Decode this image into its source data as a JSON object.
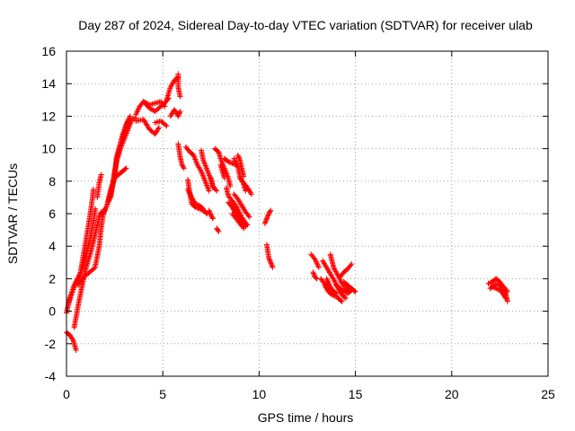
{
  "chart_data": {
    "type": "scatter",
    "title": "Day 287 of 2024, Sidereal Day-to-day VTEC variation (SDTVAR) for receiver ulab",
    "xlabel": "GPS time / hours",
    "ylabel": "SDTVAR / TECUs",
    "xlim": [
      0,
      25
    ],
    "ylim": [
      -4,
      16
    ],
    "xticks": [
      "0",
      "5",
      "10",
      "15",
      "20",
      "25"
    ],
    "yticks": [
      "-4",
      "-2",
      "0",
      "2",
      "4",
      "6",
      "8",
      "10",
      "12",
      "14",
      "16"
    ],
    "grid": true,
    "marker": "+",
    "colors": {
      "series": "#ff0000",
      "axes": "#000000",
      "grid": "#a0a0a0"
    },
    "series": [
      {
        "name": "SDTVAR",
        "segments": [
          [
            [
              0.0,
              -0.1
            ],
            [
              0.2,
              0.9
            ],
            [
              0.4,
              1.6
            ],
            [
              0.7,
              2.3
            ],
            [
              1.0,
              3.3
            ],
            [
              1.2,
              4.3
            ],
            [
              1.4,
              5.5
            ],
            [
              1.5,
              6.3
            ]
          ],
          [
            [
              0.1,
              0.5
            ],
            [
              0.4,
              1.5
            ],
            [
              0.7,
              2.2
            ],
            [
              0.9,
              3.6
            ],
            [
              1.1,
              5.0
            ],
            [
              1.3,
              6.5
            ],
            [
              1.4,
              7.5
            ]
          ],
          [
            [
              0.0,
              -1.3
            ],
            [
              0.2,
              -1.5
            ],
            [
              0.35,
              -1.8
            ],
            [
              0.5,
              -2.4
            ]
          ],
          [
            [
              0.4,
              -1.0
            ],
            [
              0.6,
              0.3
            ],
            [
              0.8,
              1.5
            ],
            [
              1.0,
              2.6
            ],
            [
              1.3,
              3.8
            ],
            [
              1.5,
              4.8
            ],
            [
              1.7,
              5.8
            ],
            [
              1.8,
              6.1
            ]
          ],
          [
            [
              0.6,
              1.6
            ],
            [
              0.9,
              2.1
            ],
            [
              1.2,
              2.4
            ],
            [
              1.5,
              2.7
            ]
          ],
          [
            [
              1.5,
              2.8
            ],
            [
              1.7,
              4.0
            ],
            [
              1.8,
              5.1
            ],
            [
              1.9,
              5.9
            ],
            [
              2.0,
              6.3
            ]
          ],
          [
            [
              1.6,
              7.0
            ],
            [
              1.7,
              7.9
            ],
            [
              1.8,
              8.4
            ]
          ],
          [
            [
              1.9,
              6.0
            ],
            [
              2.1,
              6.5
            ],
            [
              2.3,
              7.2
            ],
            [
              2.5,
              8.3
            ],
            [
              2.6,
              9.5
            ],
            [
              2.8,
              10.3
            ],
            [
              3.0,
              11.0
            ],
            [
              3.2,
              11.7
            ]
          ],
          [
            [
              2.1,
              6.5
            ],
            [
              2.3,
              7.5
            ],
            [
              2.5,
              8.2
            ],
            [
              2.7,
              8.4
            ],
            [
              2.9,
              8.6
            ],
            [
              3.1,
              8.8
            ]
          ],
          [
            [
              2.2,
              6.8
            ],
            [
              2.4,
              7.8
            ],
            [
              2.6,
              9.2
            ],
            [
              2.8,
              10.0
            ],
            [
              3.0,
              10.6
            ],
            [
              3.2,
              11.2
            ],
            [
              3.4,
              11.8
            ],
            [
              3.6,
              11.9
            ]
          ],
          [
            [
              2.3,
              7.0
            ],
            [
              2.5,
              8.6
            ],
            [
              2.7,
              9.8
            ],
            [
              2.9,
              10.8
            ],
            [
              3.1,
              11.5
            ],
            [
              3.3,
              12.0
            ]
          ],
          [
            [
              3.6,
              11.7
            ],
            [
              4.0,
              11.8
            ],
            [
              4.3,
              11.2
            ],
            [
              4.6,
              10.9
            ],
            [
              4.8,
              11.3
            ]
          ],
          [
            [
              3.6,
              12.1
            ],
            [
              3.8,
              12.6
            ],
            [
              4.0,
              12.9
            ],
            [
              4.3,
              12.7
            ],
            [
              4.6,
              12.8
            ],
            [
              4.9,
              12.9
            ],
            [
              5.1,
              12.6
            ]
          ],
          [
            [
              4.0,
              12.9
            ],
            [
              4.3,
              12.5
            ],
            [
              4.6,
              12.3
            ],
            [
              4.9,
              12.6
            ],
            [
              5.1,
              12.8
            ],
            [
              5.3,
              13.1
            ]
          ],
          [
            [
              4.6,
              11.6
            ],
            [
              4.9,
              11.7
            ],
            [
              5.2,
              11.4
            ]
          ],
          [
            [
              5.2,
              13.0
            ],
            [
              5.4,
              13.8
            ],
            [
              5.6,
              14.2
            ],
            [
              5.8,
              14.4
            ]
          ],
          [
            [
              5.4,
              12.0
            ],
            [
              5.6,
              12.4
            ],
            [
              5.8,
              12.0
            ],
            [
              5.9,
              12.3
            ]
          ],
          [
            [
              5.8,
              14.6
            ],
            [
              5.8,
              13.8
            ],
            [
              5.9,
              13.2
            ]
          ],
          [
            [
              5.8,
              10.3
            ],
            [
              5.9,
              9.5
            ],
            [
              6.0,
              9.0
            ],
            [
              6.1,
              8.8
            ]
          ],
          [
            [
              6.2,
              10.1
            ],
            [
              6.4,
              9.8
            ],
            [
              6.6,
              9.6
            ],
            [
              6.8,
              9.0
            ],
            [
              7.0,
              8.6
            ],
            [
              7.2,
              8.0
            ],
            [
              7.4,
              7.4
            ]
          ],
          [
            [
              6.3,
              8.1
            ],
            [
              6.4,
              7.3
            ],
            [
              6.5,
              6.6
            ],
            [
              6.7,
              6.4
            ],
            [
              6.9,
              6.3
            ],
            [
              7.1,
              6.2
            ],
            [
              7.3,
              6.0
            ]
          ],
          [
            [
              6.3,
              7.5
            ],
            [
              6.5,
              7.0
            ],
            [
              6.7,
              6.6
            ],
            [
              6.9,
              6.5
            ],
            [
              7.1,
              6.3
            ]
          ],
          [
            [
              7.0,
              9.9
            ],
            [
              7.1,
              9.3
            ],
            [
              7.3,
              8.7
            ],
            [
              7.5,
              8.1
            ],
            [
              7.6,
              7.6
            ]
          ],
          [
            [
              7.4,
              6.2
            ],
            [
              7.5,
              5.9
            ],
            [
              7.6,
              5.7
            ]
          ],
          [
            [
              7.5,
              8.2
            ],
            [
              7.6,
              7.7
            ],
            [
              7.8,
              7.4
            ]
          ],
          [
            [
              7.7,
              10.0
            ],
            [
              7.9,
              9.8
            ],
            [
              8.0,
              9.4
            ],
            [
              8.2,
              8.8
            ],
            [
              8.4,
              8.2
            ],
            [
              8.5,
              7.7
            ]
          ],
          [
            [
              7.8,
              5.1
            ],
            [
              7.9,
              4.9
            ]
          ],
          [
            [
              8.0,
              9.0
            ],
            [
              8.1,
              8.6
            ],
            [
              8.2,
              8.2
            ]
          ],
          [
            [
              8.2,
              9.4
            ],
            [
              8.4,
              9.2
            ],
            [
              8.6,
              9.1
            ],
            [
              8.8,
              9.0
            ]
          ],
          [
            [
              8.3,
              7.6
            ],
            [
              8.4,
              7.1
            ],
            [
              8.6,
              6.8
            ],
            [
              8.8,
              6.5
            ],
            [
              9.0,
              6.0
            ],
            [
              9.2,
              5.6
            ],
            [
              9.4,
              5.3
            ]
          ],
          [
            [
              8.4,
              6.7
            ],
            [
              8.6,
              6.4
            ],
            [
              8.8,
              6.0
            ],
            [
              9.0,
              5.6
            ],
            [
              9.2,
              5.3
            ]
          ],
          [
            [
              8.7,
              7.2
            ],
            [
              8.9,
              6.9
            ],
            [
              9.1,
              6.5
            ],
            [
              9.3,
              6.1
            ],
            [
              9.5,
              5.8
            ]
          ],
          [
            [
              8.6,
              6.0
            ],
            [
              8.8,
              5.7
            ],
            [
              9.0,
              5.4
            ],
            [
              9.2,
              5.1
            ]
          ],
          [
            [
              8.5,
              6.6
            ],
            [
              8.7,
              6.3
            ],
            [
              8.9,
              5.9
            ],
            [
              9.1,
              5.5
            ],
            [
              9.3,
              5.2
            ]
          ],
          [
            [
              8.7,
              9.4
            ],
            [
              8.9,
              8.9
            ],
            [
              9.0,
              8.3
            ],
            [
              9.2,
              7.8
            ],
            [
              9.3,
              7.4
            ]
          ],
          [
            [
              8.9,
              9.6
            ],
            [
              9.0,
              9.3
            ],
            [
              9.1,
              8.8
            ],
            [
              9.2,
              8.3
            ]
          ],
          [
            [
              9.0,
              8.2
            ],
            [
              9.2,
              7.9
            ],
            [
              9.4,
              7.6
            ],
            [
              9.6,
              7.2
            ]
          ],
          [
            [
              10.3,
              5.4
            ],
            [
              10.4,
              5.7
            ],
            [
              10.5,
              6.0
            ],
            [
              10.6,
              6.2
            ]
          ],
          [
            [
              10.4,
              4.1
            ],
            [
              10.5,
              3.3
            ],
            [
              10.6,
              3.0
            ],
            [
              10.7,
              2.7
            ]
          ],
          [
            [
              12.7,
              3.5
            ],
            [
              12.9,
              3.2
            ],
            [
              13.1,
              2.7
            ]
          ],
          [
            [
              12.8,
              2.4
            ],
            [
              12.9,
              2.1
            ],
            [
              13.0,
              2.0
            ]
          ],
          [
            [
              13.2,
              2.0
            ],
            [
              13.4,
              1.7
            ],
            [
              13.6,
              1.5
            ],
            [
              13.8,
              1.3
            ],
            [
              14.0,
              1.1
            ]
          ],
          [
            [
              13.3,
              3.1
            ],
            [
              13.5,
              2.7
            ],
            [
              13.7,
              2.3
            ],
            [
              13.9,
              1.9
            ],
            [
              14.1,
              1.4
            ],
            [
              14.3,
              1.0
            ],
            [
              14.5,
              0.8
            ]
          ],
          [
            [
              13.5,
              2.0
            ],
            [
              13.7,
              1.5
            ],
            [
              13.9,
              1.1
            ],
            [
              14.1,
              0.8
            ],
            [
              14.3,
              0.6
            ]
          ],
          [
            [
              13.4,
              1.6
            ],
            [
              13.6,
              1.2
            ],
            [
              13.8,
              1.0
            ],
            [
              14.0,
              0.9
            ]
          ],
          [
            [
              13.7,
              3.5
            ],
            [
              13.8,
              3.0
            ],
            [
              13.9,
              2.6
            ],
            [
              14.1,
              2.2
            ],
            [
              14.3,
              1.7
            ],
            [
              14.5,
              1.4
            ],
            [
              14.7,
              1.2
            ]
          ],
          [
            [
              14.2,
              2.1
            ],
            [
              14.4,
              2.4
            ],
            [
              14.6,
              2.6
            ],
            [
              14.8,
              2.9
            ]
          ],
          [
            [
              14.4,
              1.8
            ],
            [
              14.6,
              1.6
            ],
            [
              14.8,
              1.4
            ],
            [
              15.0,
              1.2
            ]
          ],
          [
            [
              14.0,
              1.6
            ],
            [
              14.2,
              1.4
            ],
            [
              14.4,
              1.2
            ],
            [
              14.6,
              1.1
            ],
            [
              14.8,
              1.3
            ]
          ],
          [
            [
              21.9,
              1.7
            ],
            [
              22.1,
              1.8
            ],
            [
              22.3,
              2.0
            ],
            [
              22.5,
              1.8
            ],
            [
              22.7,
              1.5
            ],
            [
              22.9,
              1.2
            ]
          ],
          [
            [
              22.0,
              1.4
            ],
            [
              22.2,
              1.6
            ],
            [
              22.4,
              1.7
            ],
            [
              22.6,
              1.4
            ],
            [
              22.8,
              1.1
            ],
            [
              22.9,
              0.6
            ]
          ],
          [
            [
              22.1,
              1.5
            ],
            [
              22.3,
              1.4
            ],
            [
              22.5,
              1.3
            ],
            [
              22.7,
              1.0
            ],
            [
              22.8,
              0.8
            ]
          ]
        ]
      }
    ]
  }
}
